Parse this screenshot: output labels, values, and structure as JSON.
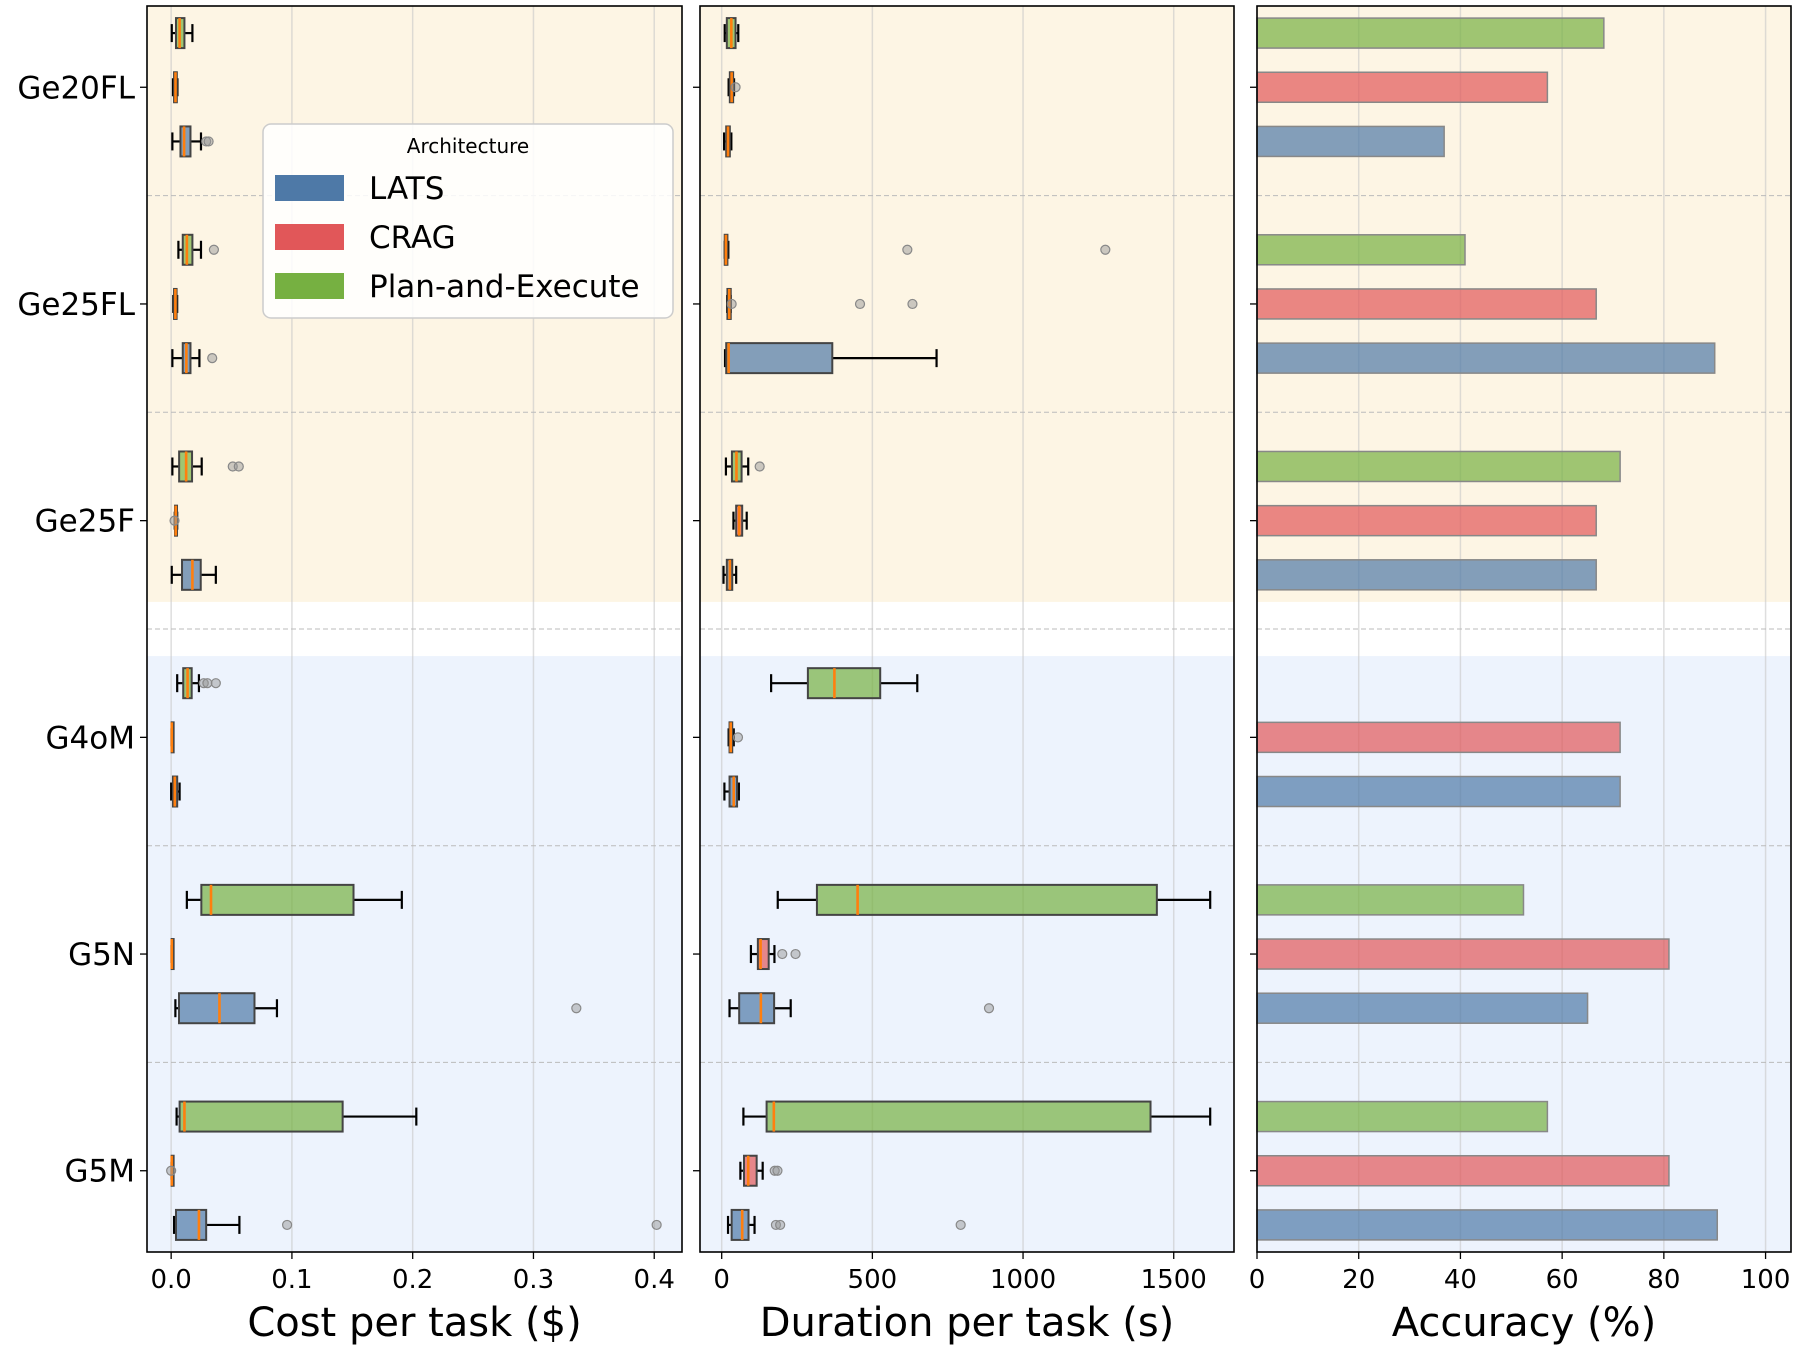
{
  "colors": {
    "LATS": "#4e79a7",
    "CRAG": "#e15759",
    "Plan-and-Execute": "#76b041",
    "median": "#ff7f0e",
    "band_gemini": "#fdf5e4",
    "band_gpt": "#edf3fd"
  },
  "legend": {
    "title": "Architecture",
    "placement": "upper-center of first panel",
    "entries": [
      "LATS",
      "CRAG",
      "Plan-and-Execute"
    ]
  },
  "chart_data": [
    {
      "type": "box",
      "xlabel": "Cost per task ($)",
      "xlim": [
        -0.02,
        0.423
      ],
      "xticks": [
        0.0,
        0.1,
        0.2,
        0.3,
        0.4
      ],
      "xtick_labels": [
        "0.0",
        "0.1",
        "0.2",
        "0.3",
        "0.4"
      ],
      "grid": true,
      "categories": [
        "Ge20FL",
        "Ge25FL",
        "Ge25F",
        "G4oM",
        "G5N",
        "G5M"
      ],
      "series": [
        {
          "name": "Plan-and-Execute",
          "values": [
            {
              "whislo": 0.0005,
              "q1": 0.004,
              "med": 0.007,
              "q3": 0.011,
              "whishi": 0.0176,
              "fliers": []
            },
            {
              "whislo": 0.006,
              "q1": 0.0096,
              "med": 0.013,
              "q3": 0.0176,
              "whishi": 0.0247,
              "fliers": [
                0.0354
              ]
            },
            {
              "whislo": 0.001,
              "q1": 0.0066,
              "med": 0.0124,
              "q3": 0.0173,
              "whishi": 0.0253,
              "fliers": [
                0.051,
                0.056
              ]
            },
            {
              "whislo": 0.005,
              "q1": 0.01,
              "med": 0.0136,
              "q3": 0.017,
              "whishi": 0.023,
              "fliers": [
                0.027,
                0.03,
                0.037
              ]
            },
            {
              "whislo": 0.013,
              "q1": 0.025,
              "med": 0.033,
              "q3": 0.151,
              "whishi": 0.191,
              "fliers": []
            },
            {
              "whislo": 0.0045,
              "q1": 0.007,
              "med": 0.011,
              "q3": 0.142,
              "whishi": 0.203,
              "fliers": []
            }
          ]
        },
        {
          "name": "CRAG",
          "values": [
            {
              "whislo": 0.0015,
              "q1": 0.0024,
              "med": 0.0036,
              "q3": 0.0047,
              "whishi": 0.0052,
              "fliers": []
            },
            {
              "whislo": 0.0018,
              "q1": 0.0024,
              "med": 0.0035,
              "q3": 0.0045,
              "whishi": 0.005,
              "fliers": []
            },
            {
              "whislo": 0.003,
              "q1": 0.0032,
              "med": 0.0038,
              "q3": 0.0048,
              "whishi": 0.005,
              "fliers": [
                0.0028
              ]
            },
            {
              "whislo": 0.0003,
              "q1": 0.0004,
              "med": 0.0005,
              "q3": 0.0007,
              "whishi": 0.0008,
              "fliers": []
            },
            {
              "whislo": 0.0003,
              "q1": 0.0004,
              "med": 0.0005,
              "q3": 0.0007,
              "whishi": 0.0008,
              "fliers": []
            },
            {
              "whislo": 0.0003,
              "q1": 0.0004,
              "med": 0.0005,
              "q3": 0.0007,
              "whishi": 0.0008,
              "fliers": [
                0.0
              ]
            }
          ]
        },
        {
          "name": "LATS",
          "values": [
            {
              "whislo": 0.001,
              "q1": 0.0077,
              "med": 0.0107,
              "q3": 0.016,
              "whishi": 0.0247,
              "fliers": [
                0.029,
                0.031
              ]
            },
            {
              "whislo": 0.001,
              "q1": 0.0096,
              "med": 0.0126,
              "q3": 0.016,
              "whishi": 0.0234,
              "fliers": [
                0.034
              ]
            },
            {
              "whislo": 0.0005,
              "q1": 0.009,
              "med": 0.0176,
              "q3": 0.0245,
              "whishi": 0.037,
              "fliers": []
            },
            {
              "whislo": 0.0,
              "q1": 0.0015,
              "med": 0.003,
              "q3": 0.005,
              "whishi": 0.007,
              "fliers": []
            },
            {
              "whislo": 0.0035,
              "q1": 0.0065,
              "med": 0.04,
              "q3": 0.069,
              "whishi": 0.0876,
              "fliers": [
                0.3355
              ]
            },
            {
              "whislo": 0.0024,
              "q1": 0.004,
              "med": 0.023,
              "q3": 0.029,
              "whishi": 0.0565,
              "fliers": [
                0.096,
                0.402
              ]
            }
          ]
        }
      ]
    },
    {
      "type": "box",
      "xlabel": "Duration per task (s)",
      "xlim": [
        -72,
        1700
      ],
      "xticks": [
        0,
        500,
        1000,
        1500
      ],
      "xtick_labels": [
        "0",
        "500",
        "1000",
        "1500"
      ],
      "grid": true,
      "categories": [
        "Ge20FL",
        "Ge25FL",
        "Ge25F",
        "G4oM",
        "G5N",
        "G5M"
      ],
      "series": [
        {
          "name": "Plan-and-Execute",
          "values": [
            {
              "whislo": 10,
              "q1": 17,
              "med": 32,
              "q3": 46,
              "whishi": 55,
              "fliers": []
            },
            {
              "whislo": 10,
              "q1": 10,
              "med": 14,
              "q3": 19,
              "whishi": 22,
              "fliers": [
                616,
                1273
              ]
            },
            {
              "whislo": 14,
              "q1": 34,
              "med": 49,
              "q3": 66,
              "whishi": 88,
              "fliers": [
                126
              ]
            },
            {
              "whislo": 164,
              "q1": 286,
              "med": 374,
              "q3": 526,
              "whishi": 649,
              "fliers": []
            },
            {
              "whislo": 186,
              "q1": 316,
              "med": 451,
              "q3": 1444,
              "whishi": 1621,
              "fliers": []
            },
            {
              "whislo": 72,
              "q1": 149,
              "med": 173,
              "q3": 1423,
              "whishi": 1621,
              "fliers": []
            }
          ]
        },
        {
          "name": "CRAG",
          "values": [
            {
              "whislo": 23,
              "q1": 27,
              "med": 33,
              "q3": 38,
              "whishi": 41,
              "fliers": [
                46
              ]
            },
            {
              "whislo": 18,
              "q1": 19,
              "med": 25,
              "q3": 30,
              "whishi": 30,
              "fliers": [
                33,
                459,
                633
              ]
            },
            {
              "whislo": 39,
              "q1": 48,
              "med": 58,
              "q3": 68,
              "whishi": 83,
              "fliers": []
            },
            {
              "whislo": 23,
              "q1": 26,
              "med": 30,
              "q3": 35,
              "whishi": 40,
              "fliers": [
                54
              ]
            },
            {
              "whislo": 97,
              "q1": 120,
              "med": 129,
              "q3": 156,
              "whishi": 175,
              "fliers": [
                201,
                245
              ]
            },
            {
              "whislo": 62,
              "q1": 74,
              "med": 88,
              "q3": 116,
              "whishi": 136,
              "fliers": [
                176,
                185
              ]
            }
          ]
        },
        {
          "name": "LATS",
          "values": [
            {
              "whislo": 8,
              "q1": 15,
              "med": 21,
              "q3": 27,
              "whishi": 32,
              "fliers": []
            },
            {
              "whislo": 11,
              "q1": 15,
              "med": 23,
              "q3": 367,
              "whishi": 713,
              "fliers": []
            },
            {
              "whislo": 6,
              "q1": 17,
              "med": 27,
              "q3": 35,
              "whishi": 48,
              "fliers": []
            },
            {
              "whislo": 9,
              "q1": 26,
              "med": 40,
              "q3": 51,
              "whishi": 57,
              "fliers": []
            },
            {
              "whislo": 26,
              "q1": 58,
              "med": 130,
              "q3": 174,
              "whishi": 229,
              "fliers": [
                887
              ]
            },
            {
              "whislo": 21,
              "q1": 33,
              "med": 68,
              "q3": 89,
              "whishi": 109,
              "fliers": [
                180,
                194,
                793
              ]
            }
          ]
        }
      ]
    },
    {
      "type": "bar",
      "orientation": "horizontal",
      "xlabel": "Accuracy (%)",
      "xlim": [
        0,
        105
      ],
      "xticks": [
        0,
        20,
        40,
        60,
        80,
        100
      ],
      "xtick_labels": [
        "0",
        "20",
        "40",
        "60",
        "80",
        "100"
      ],
      "grid": true,
      "categories": [
        "Ge20FL",
        "Ge25FL",
        "Ge25F",
        "G4oM",
        "G5N",
        "G5M"
      ],
      "series": [
        {
          "name": "Plan-and-Execute",
          "values": [
            68.2,
            40.9,
            71.4,
            null,
            52.4,
            57.1
          ]
        },
        {
          "name": "CRAG",
          "values": [
            57.1,
            66.7,
            66.7,
            71.4,
            81.0,
            81.0
          ]
        },
        {
          "name": "LATS",
          "values": [
            36.8,
            90.0,
            66.7,
            71.4,
            65.0,
            90.5
          ]
        }
      ]
    }
  ]
}
